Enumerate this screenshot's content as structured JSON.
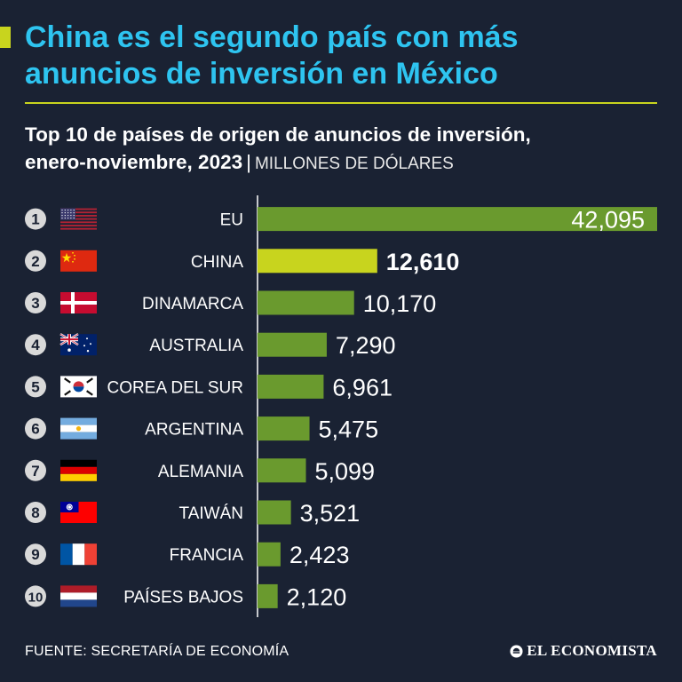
{
  "header": {
    "title_line1": "China es el segundo país con más",
    "title_line2": "anuncios de inversión en México",
    "subtitle_line1": "Top 10 de países de origen de anuncios de inversión,",
    "subtitle_line2": "enero-noviembre, 2023",
    "separator": "|",
    "unit": "MILLONES DE DÓLARES"
  },
  "colors": {
    "background": "#1a2233",
    "title": "#2ec4f0",
    "accent": "#c8d41e",
    "bar": "#6a9a2e",
    "highlight_bar": "#c8d41e"
  },
  "chart_data": {
    "type": "bar",
    "orientation": "horizontal",
    "title": "Top 10 de países de origen de anuncios de inversión, enero-noviembre, 2023",
    "unit": "MILLONES DE DÓLARES",
    "ranks": [
      "1",
      "2",
      "3",
      "4",
      "5",
      "6",
      "7",
      "8",
      "9",
      "10"
    ],
    "categories": [
      "EU",
      "CHINA",
      "DINAMARCA",
      "AUSTRALIA",
      "COREA DEL SUR",
      "ARGENTINA",
      "ALEMANIA",
      "TAIWÁN",
      "FRANCIA",
      "PAÍSES BAJOS"
    ],
    "flags": [
      "us-flag-icon",
      "china-flag-icon",
      "denmark-flag-icon",
      "australia-flag-icon",
      "south-korea-flag-icon",
      "argentina-flag-icon",
      "germany-flag-icon",
      "taiwan-flag-icon",
      "france-flag-icon",
      "netherlands-flag-icon"
    ],
    "values": [
      42095,
      12610,
      10170,
      7290,
      6961,
      5475,
      5099,
      3521,
      2423,
      2120
    ],
    "value_labels": [
      "42,095",
      "12,610",
      "10,170",
      "7,290",
      "6,961",
      "5,475",
      "5,099",
      "3,521",
      "2,423",
      "2,120"
    ],
    "highlight": "CHINA",
    "xlim": [
      0,
      42095
    ]
  },
  "footer": {
    "source": "FUENTE: SECRETARÍA DE ECONOMÍA",
    "brand": "EL ECONOMISTA"
  }
}
